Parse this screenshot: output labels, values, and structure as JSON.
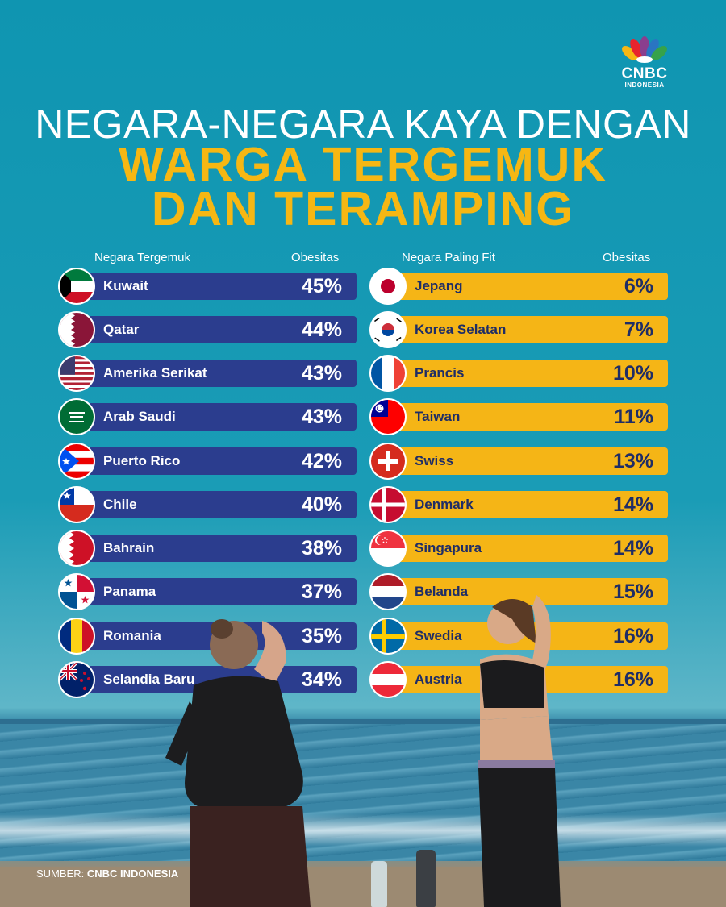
{
  "logo": {
    "brand": "CNBC",
    "sub": "INDONESIA"
  },
  "title": {
    "line1": "NEGARA-NEGARA KAYA DENGAN",
    "line2": "WARGA TERGEMUK",
    "line3": "DAN TERAMPING"
  },
  "left": {
    "header_country": "Negara Tergemuk",
    "header_value": "Obesitas",
    "rows": [
      {
        "name": "Kuwait",
        "value": "45%",
        "flag": "kuwait-flag-icon"
      },
      {
        "name": "Qatar",
        "value": "44%",
        "flag": "qatar-flag-icon"
      },
      {
        "name": "Amerika Serikat",
        "value": "43%",
        "flag": "usa-flag-icon"
      },
      {
        "name": "Arab Saudi",
        "value": "43%",
        "flag": "saudi-flag-icon"
      },
      {
        "name": "Puerto Rico",
        "value": "42%",
        "flag": "puerto-rico-flag-icon"
      },
      {
        "name": "Chile",
        "value": "40%",
        "flag": "chile-flag-icon"
      },
      {
        "name": "Bahrain",
        "value": "38%",
        "flag": "bahrain-flag-icon"
      },
      {
        "name": "Panama",
        "value": "37%",
        "flag": "panama-flag-icon"
      },
      {
        "name": "Romania",
        "value": "35%",
        "flag": "romania-flag-icon"
      },
      {
        "name": "Selandia Baru",
        "value": "34%",
        "flag": "new-zealand-flag-icon"
      }
    ]
  },
  "right": {
    "header_country": "Negara Paling Fit",
    "header_value": "Obesitas",
    "rows": [
      {
        "name": "Jepang",
        "value": "6%",
        "flag": "japan-flag-icon"
      },
      {
        "name": "Korea Selatan",
        "value": "7%",
        "flag": "south-korea-flag-icon"
      },
      {
        "name": "Prancis",
        "value": "10%",
        "flag": "france-flag-icon"
      },
      {
        "name": "Taiwan",
        "value": "11%",
        "flag": "taiwan-flag-icon"
      },
      {
        "name": "Swiss",
        "value": "13%",
        "flag": "switzerland-flag-icon"
      },
      {
        "name": "Denmark",
        "value": "14%",
        "flag": "denmark-flag-icon"
      },
      {
        "name": "Singapura",
        "value": "14%",
        "flag": "singapore-flag-icon"
      },
      {
        "name": "Belanda",
        "value": "15%",
        "flag": "netherlands-flag-icon"
      },
      {
        "name": "Swedia",
        "value": "16%",
        "flag": "sweden-flag-icon"
      },
      {
        "name": "Austria",
        "value": "16%",
        "flag": "austria-flag-icon"
      }
    ]
  },
  "colors": {
    "blue_bar": "#2b3d8e",
    "yellow_bar": "#f5b516",
    "title_yellow": "#f6b713",
    "background": "#1a9cb6"
  },
  "source": {
    "label": "SUMBER:",
    "name": "CNBC INDONESIA"
  }
}
